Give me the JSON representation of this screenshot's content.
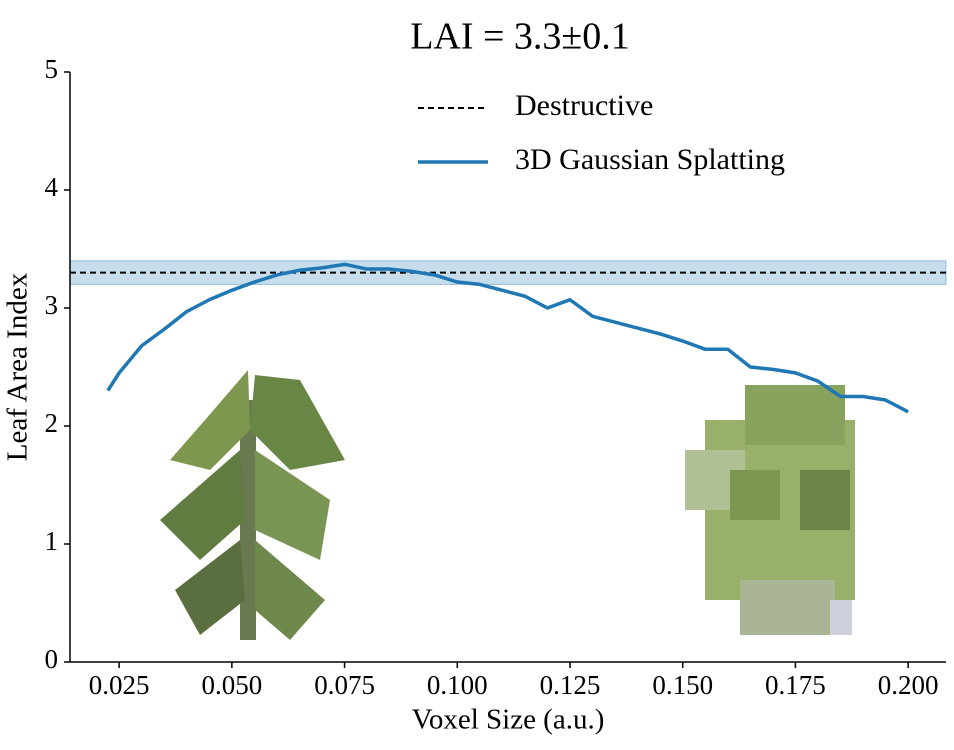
{
  "chart_data": {
    "type": "line",
    "title": "LAI = 3.3±0.1",
    "x_label": "Voxel Size (a.u.)",
    "y_label": "Leaf Area Index",
    "x": [
      0.0225,
      0.025,
      0.03,
      0.035,
      0.04,
      0.045,
      0.05,
      0.055,
      0.06,
      0.065,
      0.07,
      0.075,
      0.08,
      0.085,
      0.09,
      0.095,
      0.1,
      0.105,
      0.11,
      0.115,
      0.12,
      0.125,
      0.13,
      0.135,
      0.14,
      0.145,
      0.15,
      0.155,
      0.16,
      0.165,
      0.17,
      0.175,
      0.18,
      0.185,
      0.19,
      0.195,
      0.2
    ],
    "series": [
      {
        "name": "3D Gaussian Splatting",
        "color": "#1f77b4",
        "values": [
          2.3,
          2.45,
          2.68,
          2.82,
          2.97,
          3.07,
          3.15,
          3.22,
          3.28,
          3.32,
          3.34,
          3.37,
          3.33,
          3.33,
          3.31,
          3.28,
          3.22,
          3.2,
          3.15,
          3.1,
          3.0,
          3.07,
          2.93,
          2.88,
          2.83,
          2.78,
          2.72,
          2.65,
          2.65,
          2.5,
          2.48,
          2.45,
          2.38,
          2.25,
          2.25,
          2.22,
          2.12
        ]
      }
    ],
    "reference": {
      "name": "Destructive",
      "color": "#000000",
      "value": 3.3,
      "band": [
        3.2,
        3.4
      ],
      "band_color": "#1f77b4"
    },
    "xlim": [
      0.0141,
      0.2084
    ],
    "ylim": [
      0,
      5
    ],
    "xticks": [
      0.025,
      {
        "value": 0.05,
        "label": "0.050"
      },
      0.075,
      {
        "value": 0.1,
        "label": "0.100"
      },
      0.125,
      {
        "value": 0.15,
        "label": "0.150"
      },
      0.175,
      {
        "value": 0.2,
        "label": "0.200"
      }
    ],
    "yticks": [
      0,
      1,
      2,
      3,
      4,
      5
    ],
    "grid": false,
    "legend": "upper right"
  }
}
